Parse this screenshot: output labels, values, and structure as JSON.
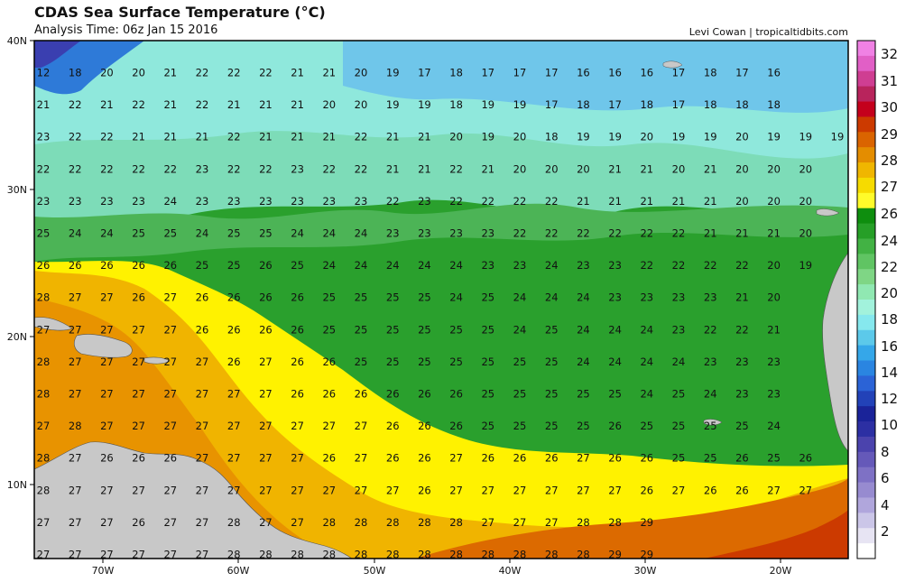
{
  "header": {
    "title": "CDAS Sea Surface Temperature (°C)",
    "analysis_time": "Analysis Time: 06z Jan 15 2016",
    "credit": "Levi Cowan | tropicaltidbits.com"
  },
  "axes": {
    "lat_ticks": [
      "40N",
      "30N",
      "20N",
      "10N"
    ],
    "lon_ticks": [
      "70W",
      "60W",
      "50W",
      "40W",
      "30W",
      "20W"
    ]
  },
  "colorbar": {
    "labels": [
      "32",
      "31",
      "30",
      "29",
      "28",
      "27",
      "26",
      "24",
      "22",
      "20",
      "18",
      "16",
      "14",
      "12",
      "10",
      "8",
      "6",
      "4",
      "2"
    ],
    "colors": [
      "#f081e4",
      "#e15fc6",
      "#cf3e92",
      "#b8245c",
      "#c4001c",
      "#cc3a00",
      "#da6400",
      "#e48d00",
      "#f0b600",
      "#f6db00",
      "#fffb2a",
      "#0e8e0e",
      "#269f27",
      "#42b244",
      "#60c463",
      "#7fd685",
      "#90e8b2",
      "#a2f2dc",
      "#86e8ee",
      "#5cc9ea",
      "#35a7e9",
      "#2a85e1",
      "#2b63d6",
      "#2242b8",
      "#1a2399",
      "#2c2fa3",
      "#4b43ad",
      "#6559b9",
      "#7e71c5",
      "#978bd0",
      "#b0a6dc",
      "#cbc6e8",
      "#e7e4f3",
      "#ffffff"
    ]
  },
  "map": {
    "land_color": "#c8c8c8",
    "sst_grid": [
      [
        12,
        18,
        20,
        20,
        21,
        22,
        22,
        22,
        21,
        21,
        20,
        19,
        17,
        18,
        17,
        17,
        17,
        16,
        16,
        16,
        17,
        18,
        17,
        16
      ],
      [
        21,
        22,
        21,
        22,
        21,
        22,
        21,
        21,
        21,
        20,
        20,
        19,
        19,
        18,
        19,
        19,
        17,
        18,
        17,
        18,
        17,
        18,
        18,
        18
      ],
      [
        23,
        22,
        22,
        21,
        21,
        21,
        22,
        21,
        21,
        21,
        22,
        21,
        21,
        20,
        19,
        20,
        18,
        19,
        19,
        20,
        19,
        19,
        20,
        19,
        19,
        19
      ],
      [
        22,
        22,
        22,
        22,
        22,
        23,
        22,
        22,
        23,
        22,
        22,
        21,
        21,
        22,
        21,
        20,
        20,
        20,
        21,
        21,
        20,
        21,
        20,
        20,
        20
      ],
      [
        23,
        23,
        23,
        23,
        24,
        23,
        23,
        23,
        23,
        23,
        23,
        22,
        23,
        22,
        22,
        22,
        22,
        21,
        21,
        21,
        21,
        21,
        20,
        20,
        20
      ],
      [
        25,
        24,
        24,
        25,
        25,
        24,
        25,
        25,
        24,
        24,
        24,
        23,
        23,
        23,
        23,
        22,
        22,
        22,
        22,
        22,
        22,
        21,
        21,
        21,
        20
      ],
      [
        26,
        26,
        26,
        26,
        26,
        25,
        25,
        26,
        25,
        24,
        24,
        24,
        24,
        24,
        23,
        23,
        24,
        23,
        23,
        22,
        22,
        22,
        22,
        20,
        19
      ],
      [
        28,
        27,
        27,
        26,
        27,
        26,
        26,
        26,
        26,
        25,
        25,
        25,
        25,
        24,
        25,
        24,
        24,
        24,
        23,
        23,
        23,
        23,
        21,
        20
      ],
      [
        27,
        27,
        27,
        27,
        27,
        26,
        26,
        26,
        26,
        25,
        25,
        25,
        25,
        25,
        25,
        24,
        25,
        24,
        24,
        24,
        23,
        22,
        22,
        21
      ],
      [
        28,
        27,
        27,
        27,
        27,
        27,
        26,
        27,
        26,
        26,
        25,
        25,
        25,
        25,
        25,
        25,
        25,
        24,
        24,
        24,
        24,
        23,
        23,
        23
      ],
      [
        28,
        27,
        27,
        27,
        27,
        27,
        27,
        27,
        26,
        26,
        26,
        26,
        26,
        26,
        25,
        25,
        25,
        25,
        25,
        24,
        25,
        24,
        23,
        23
      ],
      [
        27,
        28,
        27,
        27,
        27,
        27,
        27,
        27,
        27,
        27,
        27,
        26,
        26,
        26,
        25,
        25,
        25,
        25,
        26,
        25,
        25,
        25,
        25,
        24
      ],
      [
        28,
        27,
        26,
        26,
        26,
        27,
        27,
        27,
        27,
        26,
        27,
        26,
        26,
        27,
        26,
        26,
        26,
        27,
        26,
        26,
        25,
        25,
        26,
        25,
        26
      ],
      [
        28,
        27,
        27,
        27,
        27,
        27,
        27,
        27,
        27,
        27,
        27,
        27,
        26,
        27,
        27,
        27,
        27,
        27,
        27,
        26,
        27,
        26,
        26,
        27,
        27
      ],
      [
        27,
        27,
        27,
        26,
        27,
        27,
        28,
        27,
        27,
        28,
        28,
        28,
        28,
        28,
        27,
        27,
        27,
        28,
        28,
        29
      ],
      [
        27,
        27,
        27,
        27,
        27,
        27,
        28,
        28,
        28,
        28,
        28,
        28,
        28,
        28,
        28,
        28,
        28,
        28,
        29,
        29
      ]
    ]
  }
}
